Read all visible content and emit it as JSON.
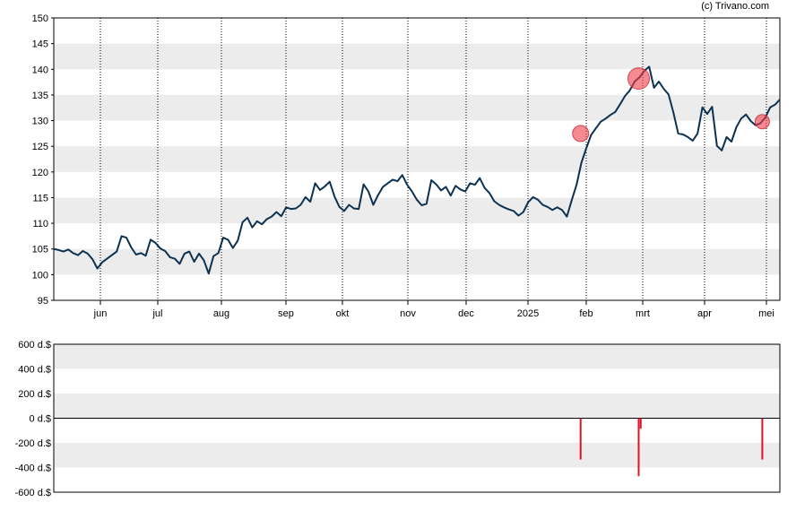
{
  "copyright": "(c) Trivano.com",
  "chart_data": [
    {
      "type": "line",
      "title": "",
      "xlabel": "",
      "ylabel": "",
      "ylim": [
        95,
        150
      ],
      "y_ticks": [
        95,
        100,
        105,
        110,
        115,
        120,
        125,
        130,
        135,
        140,
        145,
        150
      ],
      "x_tick_labels": [
        "jun",
        "jul",
        "aug",
        "sep",
        "okt",
        "nov",
        "dec",
        "2025",
        "feb",
        "mrt",
        "apr",
        "mei"
      ],
      "grid": "alternating horizontal bands, dotted vertical lines at month starts",
      "line_color": "#0d3251",
      "series": [
        {
          "values": [
            105,
            104.8,
            104.5,
            104.9,
            104.2,
            103.8,
            104.6,
            104.1,
            103,
            101.2,
            102.4,
            103.1,
            103.8,
            104.5,
            107.5,
            107.2,
            105.3,
            103.9,
            104.2,
            103.7,
            106.8,
            106.2,
            105.1,
            104.6,
            103.4,
            103.1,
            102.1,
            104.1,
            104.5,
            102.5,
            104.1,
            102.8,
            100.2,
            103.6,
            104.2,
            107.2,
            106.8,
            105.2,
            106.6,
            110.2,
            111.1,
            109.2,
            110.4,
            109.8,
            110.8,
            111.3,
            112.2,
            111.4,
            113.1,
            112.8,
            112.9,
            113.6,
            115.1,
            114.2,
            117.8,
            116.5,
            117.2,
            118.1,
            115.2,
            113.2,
            112.4,
            113.6,
            112.9,
            112.8,
            117.6,
            116.2,
            113.6,
            115.5,
            117.1,
            117.8,
            118.5,
            118.2,
            119.4,
            117.5,
            116.2,
            114.6,
            113.5,
            113.8,
            118.4,
            117.6,
            116.4,
            117.1,
            115.4,
            117.3,
            116.6,
            116.2,
            117.8,
            117.5,
            118.8,
            116.9,
            115.9,
            114.3,
            113.6,
            113.1,
            112.7,
            112.4,
            111.5,
            112.2,
            114.1,
            115.1,
            114.6,
            113.6,
            113.2,
            112.6,
            113.1,
            112.6,
            111.3,
            114.5,
            117.5,
            121.8,
            124.6,
            127.2,
            128.5,
            129.8,
            130.4,
            131.1,
            131.7,
            133.2,
            134.8,
            135.9,
            137.6,
            138.4,
            139.7,
            140.5,
            136.4,
            137.6,
            136.2,
            135.1,
            131.6,
            127.5,
            127.3,
            126.8,
            126.1,
            127.5,
            132.6,
            131.3,
            132.7,
            125.1,
            124.2,
            126.8,
            125.9,
            128.7,
            130.4,
            131.2,
            129.9,
            129.1,
            129.5,
            130.6,
            132.6,
            133.1,
            134.1
          ]
        }
      ],
      "event_markers": [
        {
          "x": "2025-01-29",
          "y": 127.5
        },
        {
          "x": "2025-02-27",
          "y": 138.2
        },
        {
          "x": "2025-04-29",
          "y": 129.8
        }
      ]
    },
    {
      "type": "bar",
      "title": "",
      "xlabel": "",
      "ylabel": "",
      "ylim": [
        -600,
        600
      ],
      "y_tick_labels": [
        "600 d.$",
        "400 d.$",
        "200 d.$",
        "0 d.$",
        "-200 d.$",
        "-400 d.$",
        "-600 d.$"
      ],
      "y_ticks": [
        600,
        400,
        200,
        0,
        -200,
        -400,
        -600
      ],
      "bar_color": "#e0112b",
      "bars": [
        {
          "x": "2025-01-29",
          "value": -335
        },
        {
          "x": "2025-02-27",
          "value": -470
        },
        {
          "x": "2025-02-28",
          "value": -85
        },
        {
          "x": "2025-04-29",
          "value": -335
        }
      ]
    }
  ]
}
